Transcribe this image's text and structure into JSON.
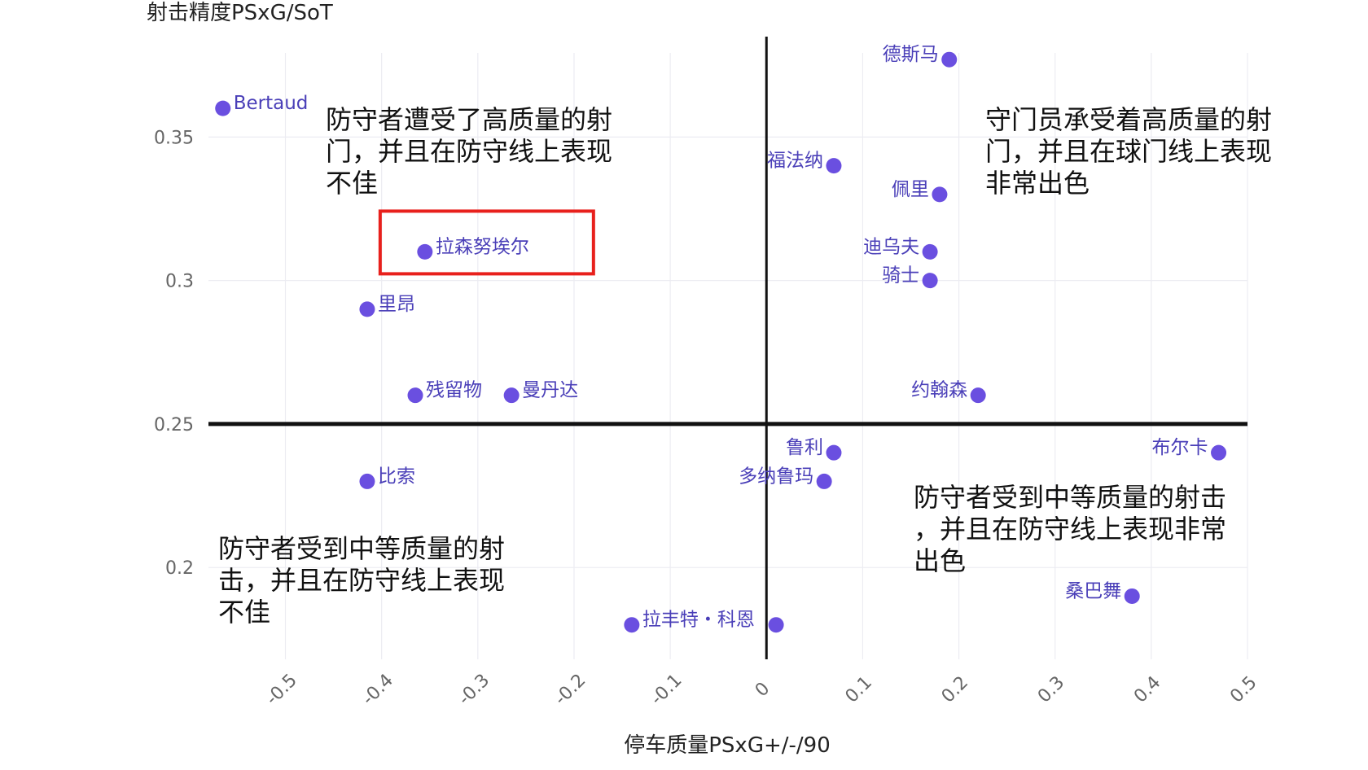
{
  "chart_data": {
    "type": "scatter",
    "title": "",
    "xlabel": "停车质量PSxG+/-/90",
    "ylabel": "射击精度PSxG/SoT",
    "xlim": [
      -0.58,
      0.5
    ],
    "ylim": [
      0.168,
      0.385
    ],
    "xticks": [
      -0.5,
      -0.4,
      -0.3,
      -0.2,
      -0.1,
      0,
      0.1,
      0.2,
      0.3,
      0.4,
      0.5
    ],
    "xtick_labels": [
      "-0.5",
      "-0.4",
      "-0.3",
      "-0.2",
      "-0.1",
      "0",
      "0.1",
      "0.2",
      "0.3",
      "0.4",
      "0.5"
    ],
    "yticks": [
      0.2,
      0.25,
      0.3,
      0.35
    ],
    "ytick_labels": [
      "0.2",
      "0.25",
      "0.3",
      "0.35"
    ],
    "xtick_rotation_deg": -45,
    "grid": true,
    "reference_lines": {
      "x": 0,
      "y": 0.25
    },
    "point_color": "#6a4fe0",
    "label_color": "#4a3fb8",
    "highlight_color": "#e8201c",
    "highlighted_point": "拉森努埃尔",
    "points": [
      {
        "label": "德斯马",
        "x": 0.19,
        "y": 0.377,
        "label_side": "left"
      },
      {
        "label": "Bertaud",
        "x": -0.565,
        "y": 0.36,
        "label_side": "right"
      },
      {
        "label": "福法纳",
        "x": 0.07,
        "y": 0.34,
        "label_side": "left"
      },
      {
        "label": "佩里",
        "x": 0.18,
        "y": 0.33,
        "label_side": "left"
      },
      {
        "label": "拉森努埃尔",
        "x": -0.355,
        "y": 0.31,
        "label_side": "right"
      },
      {
        "label": "迪乌夫",
        "x": 0.17,
        "y": 0.31,
        "label_side": "left"
      },
      {
        "label": "骑士",
        "x": 0.17,
        "y": 0.3,
        "label_side": "left"
      },
      {
        "label": "里昂",
        "x": -0.415,
        "y": 0.29,
        "label_side": "right"
      },
      {
        "label": "残留物",
        "x": -0.365,
        "y": 0.26,
        "label_side": "right"
      },
      {
        "label": "曼丹达",
        "x": -0.265,
        "y": 0.26,
        "label_side": "right"
      },
      {
        "label": "约翰森",
        "x": 0.22,
        "y": 0.26,
        "label_side": "left"
      },
      {
        "label": "鲁利",
        "x": 0.07,
        "y": 0.24,
        "label_side": "left"
      },
      {
        "label": "布尔卡",
        "x": 0.47,
        "y": 0.24,
        "label_side": "left"
      },
      {
        "label": "比索",
        "x": -0.415,
        "y": 0.23,
        "label_side": "right"
      },
      {
        "label": "多纳鲁玛",
        "x": 0.06,
        "y": 0.23,
        "label_side": "left"
      },
      {
        "label": "桑巴舞",
        "x": 0.38,
        "y": 0.19,
        "label_side": "left"
      },
      {
        "label": "拉丰特・科恩",
        "x": -0.14,
        "y": 0.18,
        "label_side": "right"
      },
      {
        "label": "",
        "x": 0.01,
        "y": 0.18,
        "label_side": "none"
      }
    ],
    "annotations": [
      {
        "quadrant": "top-left",
        "lines": [
          "防守者遭受了高质量的射",
          "门，并且在防守线上表现",
          "不佳"
        ]
      },
      {
        "quadrant": "top-right",
        "lines": [
          "守门员承受着高质量的射",
          "门，并且在球门线上表现",
          "非常出色"
        ]
      },
      {
        "quadrant": "bottom-right",
        "lines": [
          "防守者受到中等质量的射击",
          "，并且在防守线上表现非常",
          "出色"
        ]
      },
      {
        "quadrant": "bottom-left",
        "lines": [
          "防守者受到中等质量的射",
          "击，并且在防守线上表现",
          "不佳"
        ]
      }
    ]
  }
}
